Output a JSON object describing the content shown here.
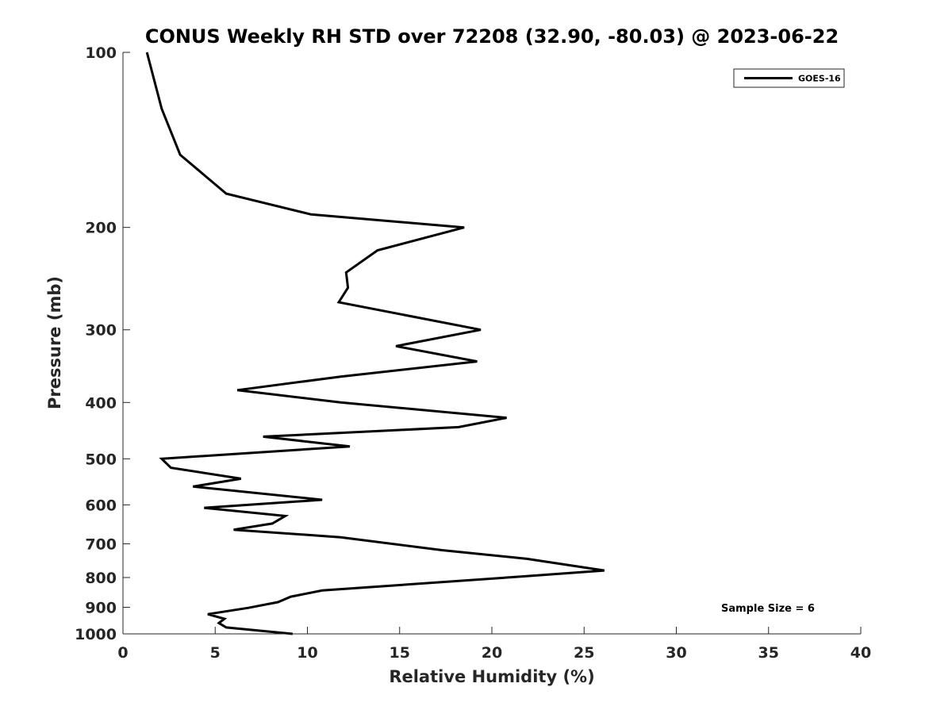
{
  "chart_data": {
    "type": "line",
    "title": "CONUS Weekly RH STD over 72208 (32.90, -80.03) @ 2023-06-22",
    "xlabel": "Relative Humidity (%)",
    "ylabel": "Pressure (mb)",
    "xlim": [
      0,
      40
    ],
    "ylim": [
      100,
      1000
    ],
    "yscale": "log",
    "yreversed": true,
    "x_ticks": [
      "0",
      "5",
      "10",
      "15",
      "20",
      "25",
      "30",
      "35",
      "40"
    ],
    "y_ticks": [
      "100",
      "200",
      "300",
      "400",
      "500",
      "600",
      "700",
      "800",
      "900",
      "1000"
    ],
    "grid": false,
    "legend_position": "top-right",
    "line_color": "#000000",
    "series": [
      {
        "name": "GOES-16",
        "points": [
          [
            1.3,
            100
          ],
          [
            2.1,
            125
          ],
          [
            3.1,
            150
          ],
          [
            5.6,
            175
          ],
          [
            10.2,
            190
          ],
          [
            18.5,
            200
          ],
          [
            13.8,
            219
          ],
          [
            12.1,
            239
          ],
          [
            12.2,
            254
          ],
          [
            11.7,
            269
          ],
          [
            19.4,
            300
          ],
          [
            14.8,
            320
          ],
          [
            19.2,
            340
          ],
          [
            11.8,
            361
          ],
          [
            6.2,
            381
          ],
          [
            11.8,
            400
          ],
          [
            20.8,
            425
          ],
          [
            18.2,
            441
          ],
          [
            7.6,
            458
          ],
          [
            12.3,
            476
          ],
          [
            2.1,
            500
          ],
          [
            2.6,
            518
          ],
          [
            6.4,
            541
          ],
          [
            3.8,
            558
          ],
          [
            10.8,
            588
          ],
          [
            4.4,
            607
          ],
          [
            8.8,
            627
          ],
          [
            8.1,
            646
          ],
          [
            6.0,
            662
          ],
          [
            11.8,
            682
          ],
          [
            17.3,
            718
          ],
          [
            21.9,
            743
          ],
          [
            26.1,
            778
          ],
          [
            21.8,
            796
          ],
          [
            10.8,
            842
          ],
          [
            9.1,
            863
          ],
          [
            8.4,
            882
          ],
          [
            6.8,
            902
          ],
          [
            4.6,
            925
          ],
          [
            5.5,
            942
          ],
          [
            5.2,
            958
          ],
          [
            5.6,
            975
          ],
          [
            9.2,
            1000
          ]
        ]
      }
    ],
    "annotation": "Sample Size = 6"
  }
}
